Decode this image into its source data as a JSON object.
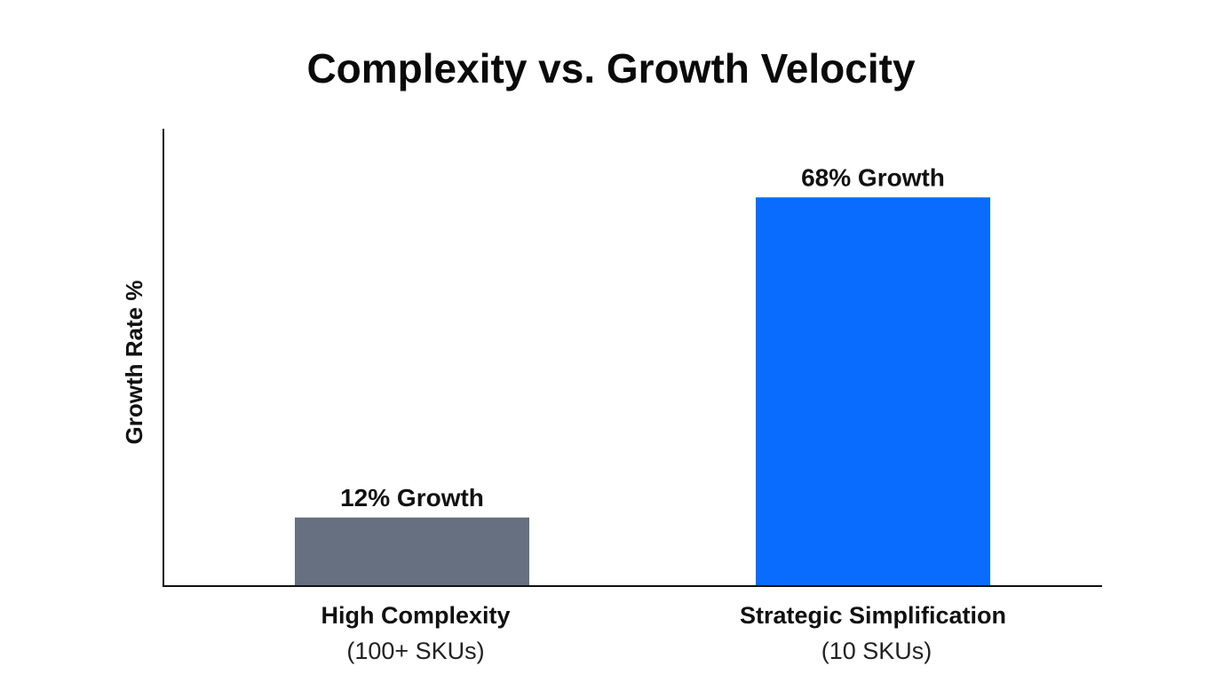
{
  "chart_data": {
    "type": "bar",
    "title": "Complexity vs. Growth Velocity",
    "xlabel": "",
    "ylabel": "Growth Rate %",
    "ylim": [
      0,
      80
    ],
    "grid": false,
    "categories": [
      {
        "line1": "High Complexity",
        "line2": "(100+ SKUs)"
      },
      {
        "line1": "Strategic Simplification",
        "line2": "(10 SKUs)"
      }
    ],
    "values": [
      12,
      68
    ],
    "data_labels": [
      "12% Growth",
      "68% Growth"
    ],
    "colors": [
      "#667080",
      "#0a6cff"
    ]
  }
}
